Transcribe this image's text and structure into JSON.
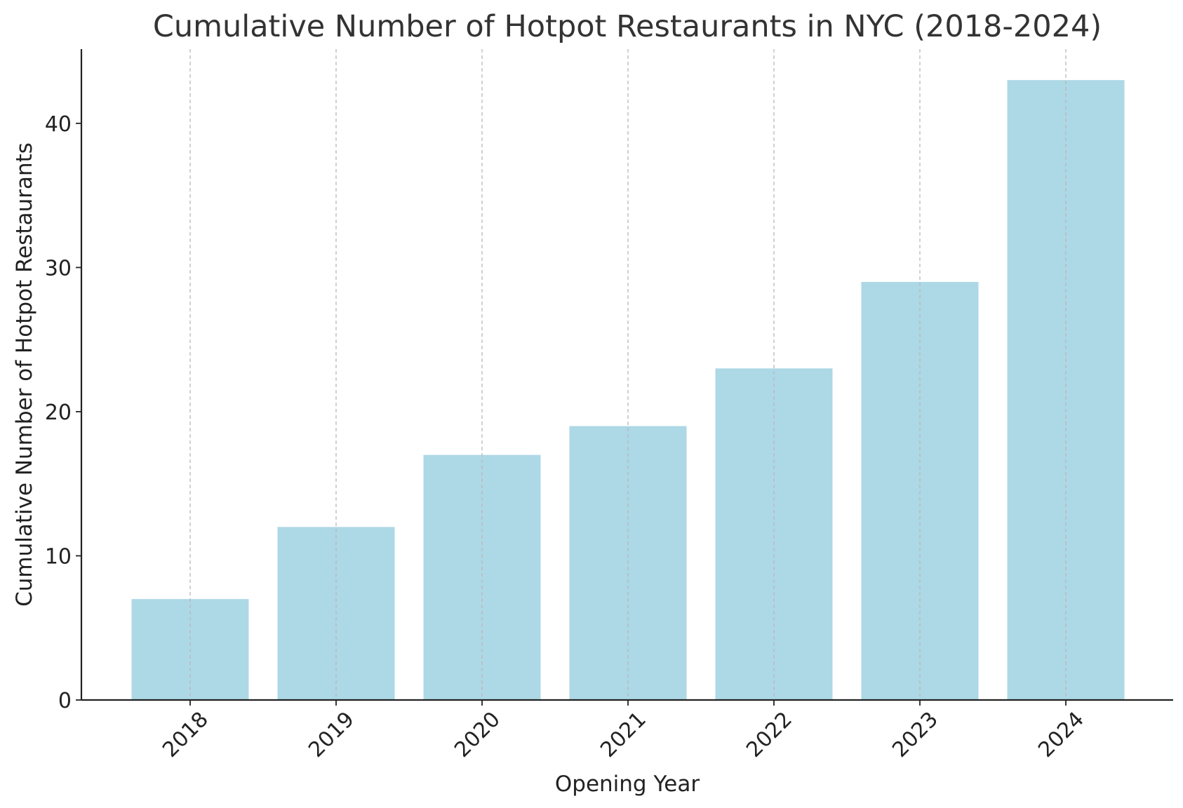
{
  "chart_data": {
    "type": "bar",
    "title": "Cumulative Number of Hotpot Restaurants in NYC (2018-2024)",
    "xlabel": "Opening Year",
    "ylabel": "Cumulative Number of Hotpot Restaurants",
    "categories": [
      "2018",
      "2019",
      "2020",
      "2021",
      "2022",
      "2023",
      "2024"
    ],
    "values": [
      7,
      12,
      17,
      19,
      23,
      29,
      43
    ],
    "ylim": [
      0,
      45.15
    ],
    "yticks": [
      0,
      10,
      20,
      30,
      40
    ],
    "grid": "vertical dashed",
    "bar_color": "#add8e6",
    "grid_color": "#b8b8b8",
    "x_tick_rotation": "45 degrees"
  }
}
